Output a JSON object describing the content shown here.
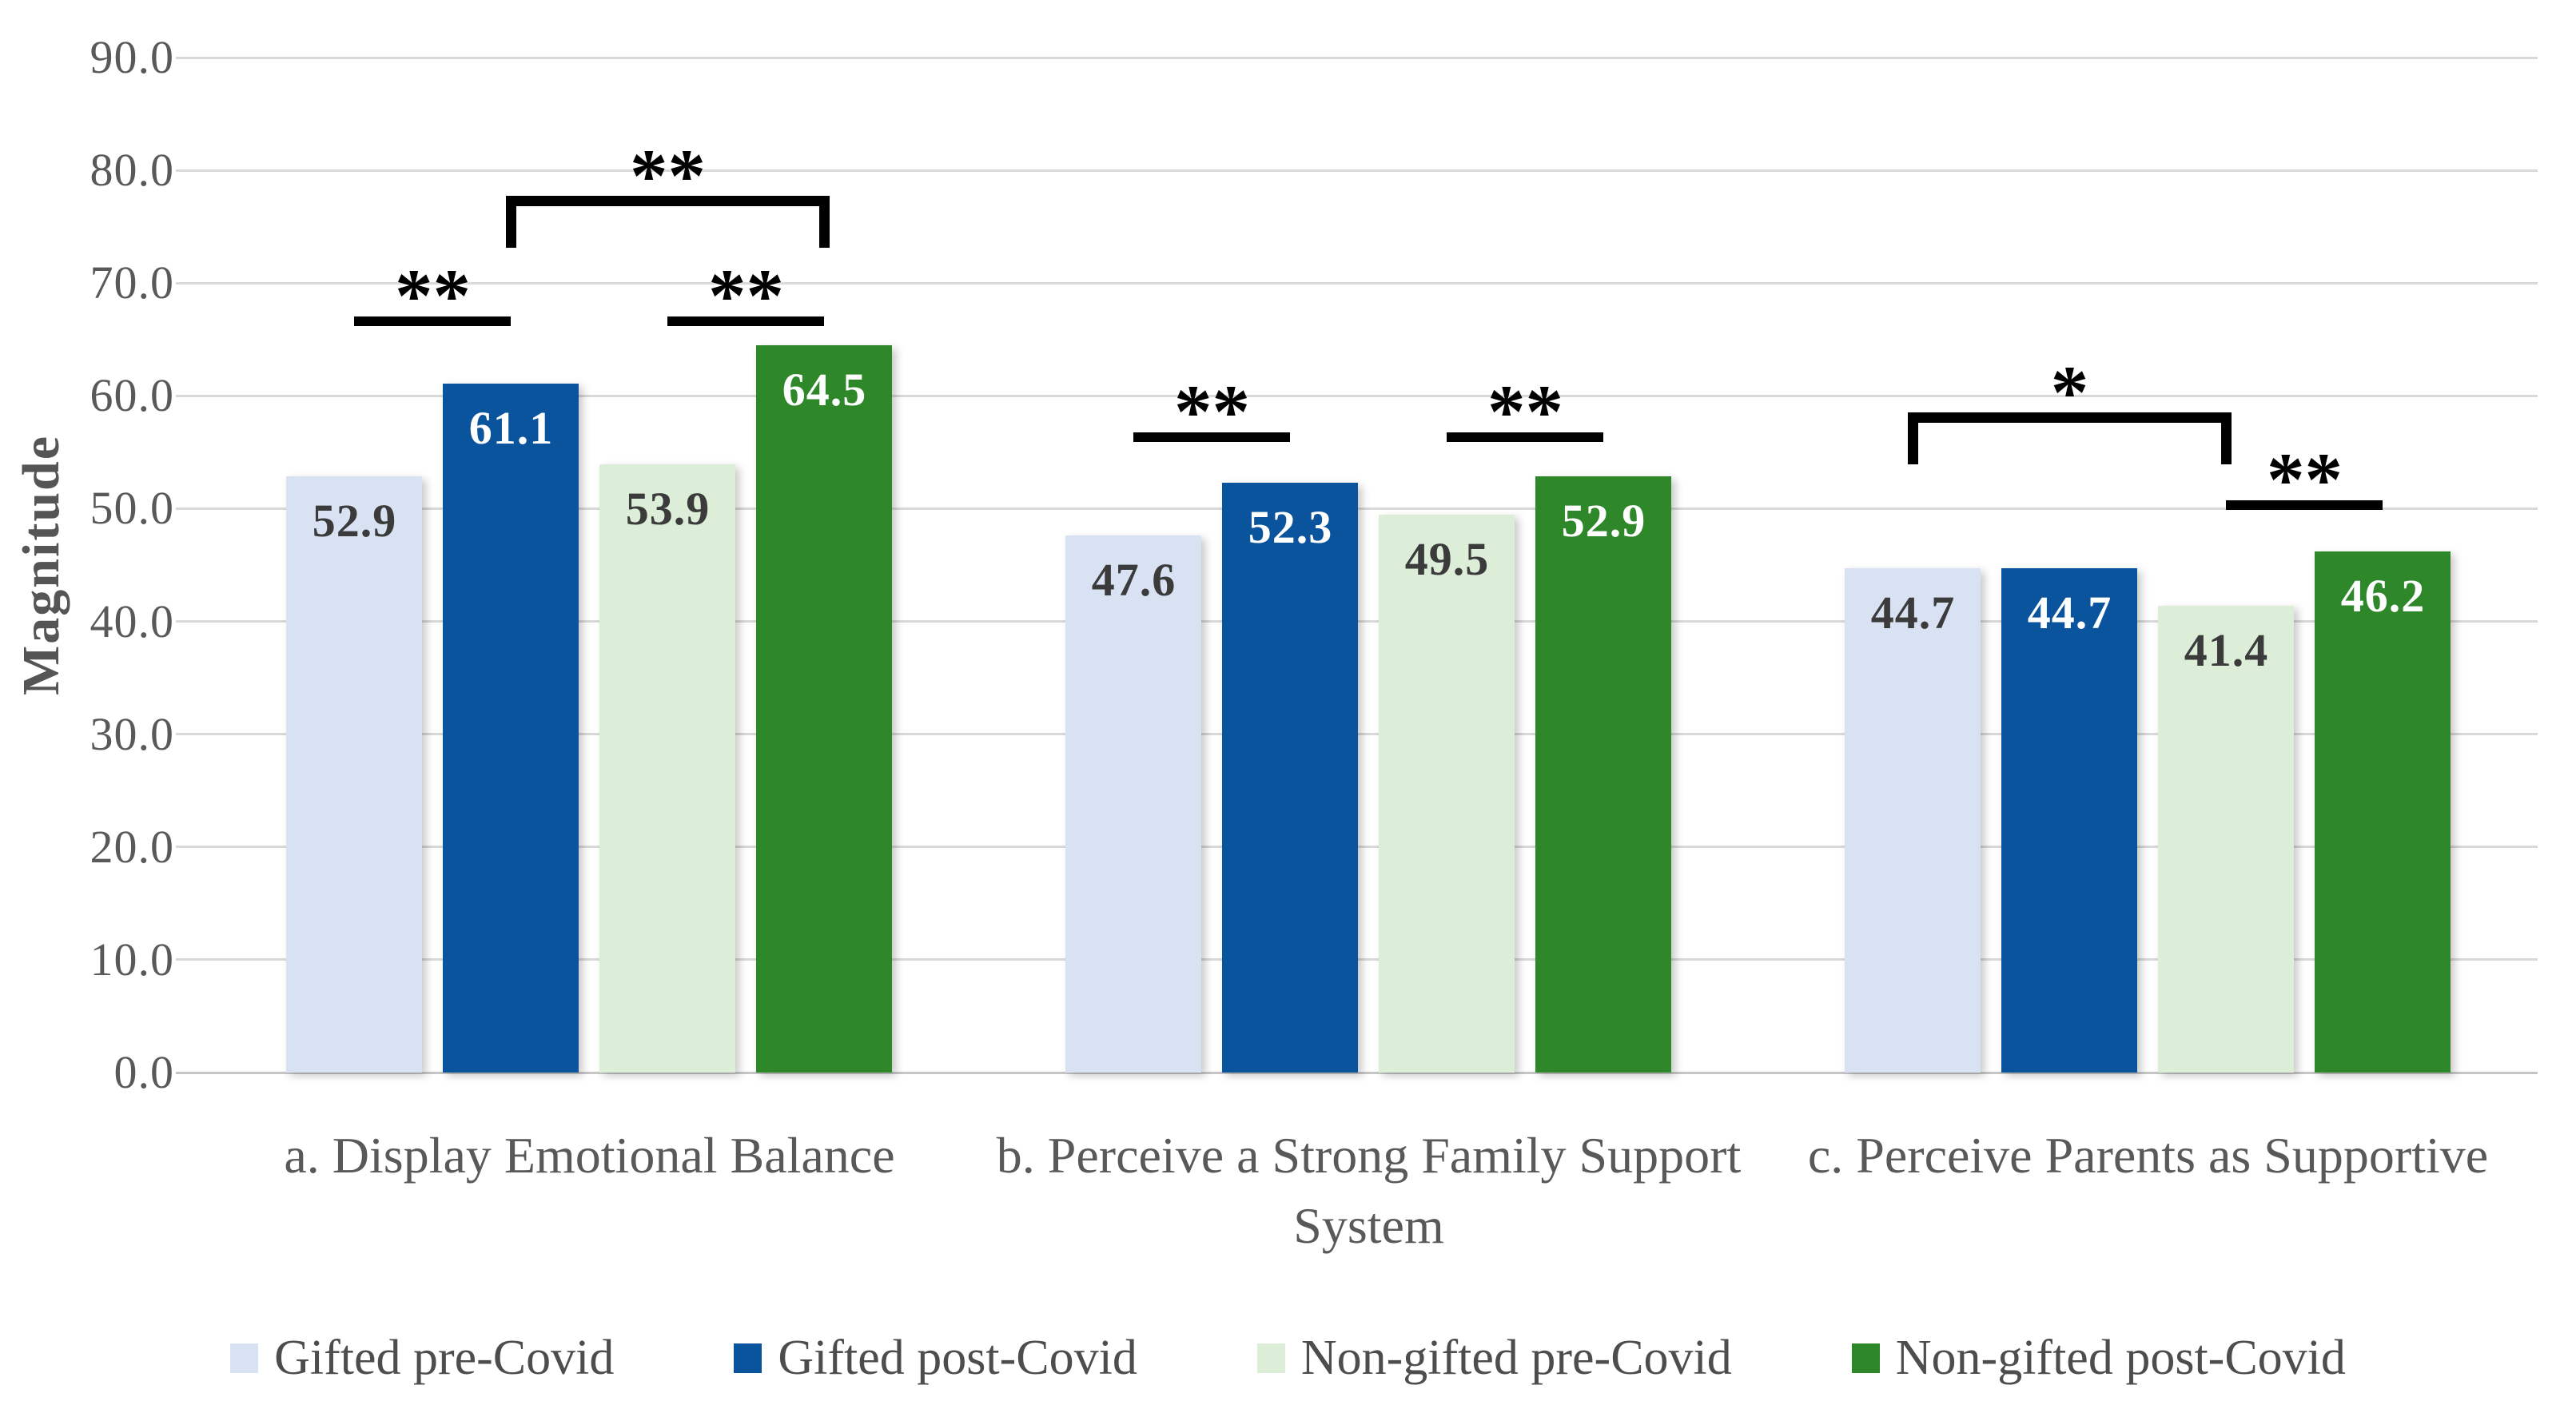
{
  "chart_data": {
    "type": "bar",
    "title": "",
    "ylabel": "Magnitude",
    "xlabel": "",
    "ylim": [
      0,
      90
    ],
    "grid": "horizontal",
    "legend_position": "bottom",
    "yticks": [
      {
        "v": 0,
        "label": "0.0"
      },
      {
        "v": 10,
        "label": "10.0"
      },
      {
        "v": 20,
        "label": "20.0"
      },
      {
        "v": 30,
        "label": "30.0"
      },
      {
        "v": 40,
        "label": "40.0"
      },
      {
        "v": 50,
        "label": "50.0"
      },
      {
        "v": 60,
        "label": "60.0"
      },
      {
        "v": 70,
        "label": "70.0"
      },
      {
        "v": 80,
        "label": "80.0"
      },
      {
        "v": 90,
        "label": "90.0"
      }
    ],
    "categories": [
      "a. Display Emotional Balance",
      "b. Perceive a Strong Family Support\nSystem",
      "c. Perceive Parents as Supportive"
    ],
    "series": [
      {
        "name": "Gifted pre-Covid",
        "color": "#d8e2f3",
        "label_color": "#3b3b3b",
        "values": [
          52.9,
          47.6,
          44.7
        ]
      },
      {
        "name": "Gifted post-Covid",
        "color": "#0a549e",
        "label_color": "#ffffff",
        "values": [
          61.1,
          52.3,
          44.7
        ]
      },
      {
        "name": "Non-gifted pre-Covid",
        "color": "#dcedd8",
        "label_color": "#3b3b3b",
        "values": [
          53.9,
          49.5,
          41.4
        ]
      },
      {
        "name": "Non-gifted post-Covid",
        "color": "#2e8728",
        "label_color": "#ffffff",
        "values": [
          64.5,
          52.9,
          46.2
        ]
      }
    ],
    "significance": [
      {
        "kind": "line",
        "group": 0,
        "from": 0,
        "to": 1,
        "y": 66.2,
        "label": "**"
      },
      {
        "kind": "line",
        "group": 0,
        "from": 2,
        "to": 3,
        "y": 66.2,
        "label": "**"
      },
      {
        "kind": "bracket",
        "group": 0,
        "from": 1,
        "to": 3,
        "y": 76.8,
        "drop": 3.7,
        "label": "**"
      },
      {
        "kind": "line",
        "group": 1,
        "from": 0,
        "to": 1,
        "y": 55.9,
        "label": "**"
      },
      {
        "kind": "line",
        "group": 1,
        "from": 2,
        "to": 3,
        "y": 55.9,
        "label": "**"
      },
      {
        "kind": "bracket",
        "group": 2,
        "from": 0,
        "to": 2,
        "y": 57.6,
        "drop": 3.7,
        "label": "*"
      },
      {
        "kind": "line",
        "group": 2,
        "from": 2,
        "to": 3,
        "y": 49.9,
        "label": "**"
      }
    ],
    "colors": {
      "gridline": "#d9d9d9",
      "axis_baseline": "#c6c6c6",
      "axis_text": "#595959",
      "category_text": "#595959",
      "legend_text": "#4d4d4d",
      "annotation": "#000000",
      "background": "#ffffff"
    }
  }
}
